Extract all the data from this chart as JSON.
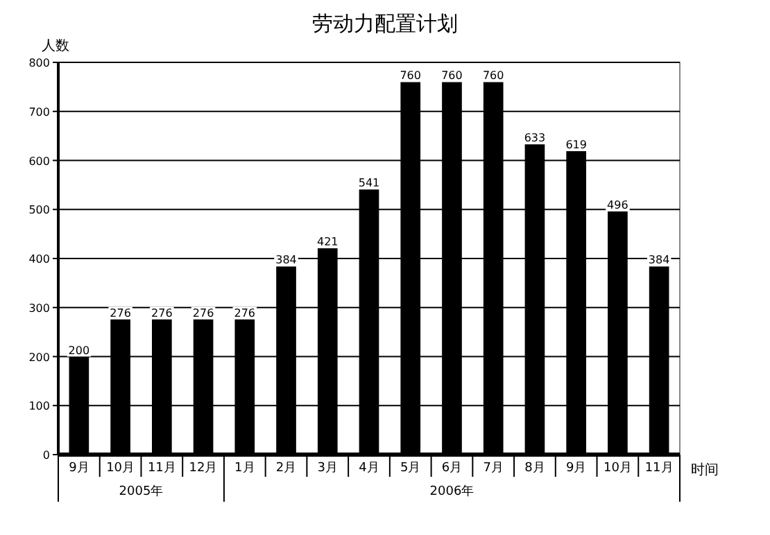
{
  "chart_data": {
    "type": "bar",
    "title": "劳动力配置计划",
    "ylabel": "人数",
    "xlabel": "时间",
    "categories": [
      "9月",
      "10月",
      "11月",
      "12月",
      "1月",
      "2月",
      "3月",
      "4月",
      "5月",
      "6月",
      "7月",
      "8月",
      "9月",
      "10月",
      "11月"
    ],
    "values": [
      200,
      276,
      276,
      276,
      276,
      384,
      421,
      541,
      760,
      760,
      760,
      633,
      619,
      496,
      384
    ],
    "color": "#000000",
    "ylim": [
      0,
      800
    ],
    "yticks": [
      0,
      100,
      200,
      300,
      400,
      500,
      600,
      700,
      800
    ],
    "grid": "y",
    "data_labels": true,
    "annotations": [
      "2005年",
      "2006年"
    ]
  }
}
